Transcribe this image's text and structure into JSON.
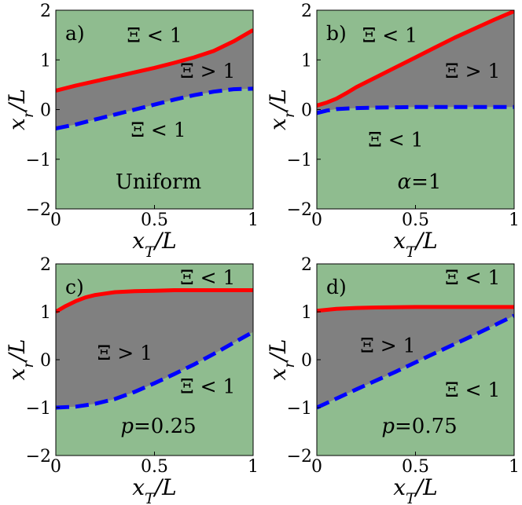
{
  "colors": {
    "green_region": "#8fbc8f",
    "gray_region": "#808080",
    "upper_curve": "#ff0000",
    "lower_curve": "#0000ff"
  },
  "chart_data": [
    {
      "type": "area",
      "panel_label": "a)",
      "note": "Uniform",
      "xlabel": "x_T/L",
      "ylabel": "x_r/L",
      "xlim": [
        0,
        1
      ],
      "ylim": [
        -2,
        2
      ],
      "x_ticks": [
        "0",
        "0.5",
        "1"
      ],
      "y_ticks": [
        "2",
        "1",
        "0",
        "-1",
        "-2"
      ],
      "region_labels": [
        {
          "text": "Ξ < 1",
          "x": 0.5,
          "y": 1.5
        },
        {
          "text": "Ξ > 1",
          "x": 0.77,
          "y": 0.78
        },
        {
          "text": "Ξ < 1",
          "x": 0.52,
          "y": -0.4
        }
      ],
      "series": [
        {
          "style": "solid",
          "x": [
            0,
            0.1,
            0.2,
            0.3,
            0.4,
            0.5,
            0.6,
            0.7,
            0.8,
            0.9,
            1.0
          ],
          "y": [
            0.38,
            0.48,
            0.57,
            0.66,
            0.75,
            0.84,
            0.94,
            1.05,
            1.18,
            1.37,
            1.6
          ]
        },
        {
          "style": "dashed",
          "x": [
            0,
            0.1,
            0.2,
            0.3,
            0.4,
            0.5,
            0.6,
            0.7,
            0.8,
            0.9,
            1.0
          ],
          "y": [
            -0.38,
            -0.3,
            -0.2,
            -0.1,
            0.0,
            0.1,
            0.2,
            0.29,
            0.36,
            0.41,
            0.42
          ]
        }
      ]
    },
    {
      "type": "area",
      "panel_label": "b)",
      "note": "α=1",
      "xlabel": "x_T/L",
      "ylabel": "x_r/L",
      "xlim": [
        0,
        1
      ],
      "ylim": [
        -2,
        2
      ],
      "x_ticks": [
        "0",
        "0.5",
        "1"
      ],
      "y_ticks": [
        "2",
        "1",
        "0",
        "-1",
        "-2"
      ],
      "region_labels": [
        {
          "text": "Ξ < 1",
          "x": 0.37,
          "y": 1.5
        },
        {
          "text": "Ξ > 1",
          "x": 0.79,
          "y": 0.78
        },
        {
          "text": "Ξ < 1",
          "x": 0.4,
          "y": -0.6
        }
      ],
      "series": [
        {
          "style": "solid",
          "x": [
            0,
            0.05,
            0.1,
            0.15,
            0.2,
            0.3,
            0.4,
            0.5,
            0.6,
            0.7,
            0.8,
            0.9,
            1.0
          ],
          "y": [
            0.08,
            0.14,
            0.22,
            0.33,
            0.45,
            0.65,
            0.85,
            1.05,
            1.25,
            1.45,
            1.63,
            1.81,
            1.98
          ]
        },
        {
          "style": "dashed",
          "x": [
            0,
            0.05,
            0.1,
            0.2,
            0.3,
            0.5,
            0.7,
            1.0
          ],
          "y": [
            -0.07,
            -0.02,
            0.01,
            0.03,
            0.04,
            0.05,
            0.05,
            0.05
          ]
        }
      ]
    },
    {
      "type": "area",
      "panel_label": "c)",
      "note": "p=0.25",
      "xlabel": "x_T/L",
      "ylabel": "x_r/L",
      "xlim": [
        0,
        1
      ],
      "ylim": [
        -2,
        2
      ],
      "x_ticks": [
        "0",
        "0.5",
        "1"
      ],
      "y_ticks": [
        "2",
        "1",
        "0",
        "-1",
        "-2"
      ],
      "region_labels": [
        {
          "text": "Ξ < 1",
          "x": 0.77,
          "y": 1.72
        },
        {
          "text": "Ξ > 1",
          "x": 0.35,
          "y": 0.15
        },
        {
          "text": "Ξ < 1",
          "x": 0.77,
          "y": -0.55
        }
      ],
      "series": [
        {
          "style": "solid",
          "x": [
            0,
            0.05,
            0.1,
            0.15,
            0.2,
            0.3,
            0.4,
            0.5,
            0.6,
            0.8,
            1.0
          ],
          "y": [
            1.0,
            1.12,
            1.22,
            1.3,
            1.35,
            1.41,
            1.43,
            1.44,
            1.45,
            1.45,
            1.45
          ]
        },
        {
          "style": "dashed",
          "x": [
            0,
            0.1,
            0.2,
            0.3,
            0.4,
            0.5,
            0.6,
            0.7,
            0.8,
            0.9,
            1.0
          ],
          "y": [
            -1.0,
            -0.98,
            -0.92,
            -0.82,
            -0.67,
            -0.49,
            -0.3,
            -0.1,
            0.12,
            0.35,
            0.58
          ]
        }
      ]
    },
    {
      "type": "area",
      "panel_label": "d)",
      "note": "p=0.75",
      "xlabel": "x_T/L",
      "ylabel": "x_r/L",
      "xlim": [
        0,
        1
      ],
      "ylim": [
        -2,
        2
      ],
      "x_ticks": [
        "0",
        "0.5",
        "1"
      ],
      "y_ticks": [
        "2",
        "1",
        "0",
        "-1",
        "-2"
      ],
      "region_labels": [
        {
          "text": "Ξ < 1",
          "x": 0.79,
          "y": 1.72
        },
        {
          "text": "Ξ > 1",
          "x": 0.36,
          "y": 0.3
        },
        {
          "text": "Ξ < 1",
          "x": 0.79,
          "y": -0.62
        }
      ],
      "series": [
        {
          "style": "solid",
          "x": [
            0,
            0.1,
            0.2,
            0.3,
            0.5,
            0.7,
            1.0
          ],
          "y": [
            1.02,
            1.06,
            1.08,
            1.09,
            1.1,
            1.1,
            1.1
          ]
        },
        {
          "style": "dashed",
          "x": [
            0,
            0.2,
            0.4,
            0.6,
            0.8,
            1.0
          ],
          "y": [
            -1.0,
            -0.62,
            -0.25,
            0.14,
            0.52,
            0.92
          ]
        }
      ]
    }
  ]
}
